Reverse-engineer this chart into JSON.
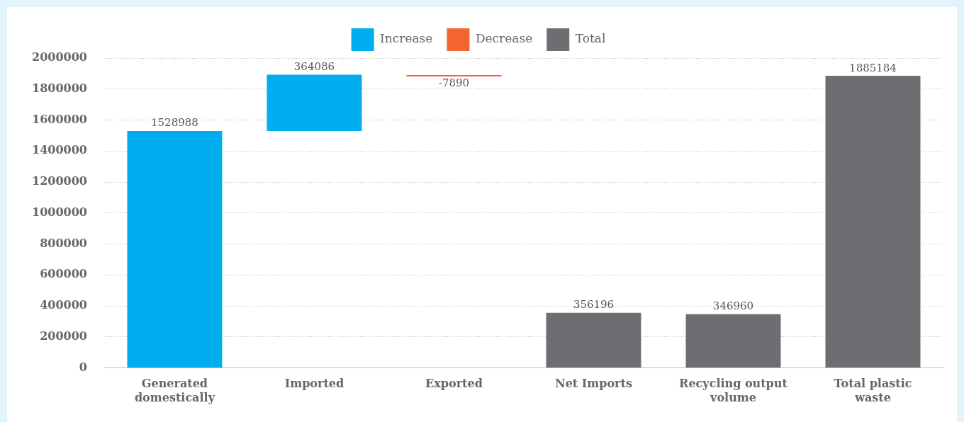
{
  "chart_data": {
    "type": "bar",
    "categories": [
      "Generated domestically",
      "Imported",
      "Exported",
      "Net Imports",
      "Recycling output volume",
      "Total plastic waste"
    ],
    "series": [
      {
        "name": "Increase",
        "color": "#00adef",
        "values": [
          1528988,
          364086,
          null,
          null,
          null,
          null
        ],
        "base": [
          0,
          1528988,
          null,
          null,
          null,
          null
        ]
      },
      {
        "name": "Decrease",
        "color": "#f26531",
        "values": [
          null,
          null,
          -7890,
          null,
          null,
          null
        ],
        "base": [
          null,
          null,
          1893074,
          null,
          null,
          null
        ]
      },
      {
        "name": "Total",
        "color": "#6d6e71",
        "values": [
          null,
          null,
          null,
          356196,
          346960,
          1885184
        ],
        "base": [
          null,
          null,
          null,
          0,
          0,
          0
        ]
      }
    ],
    "ylim": [
      0,
      2000000
    ],
    "yticks": [
      0,
      200000,
      400000,
      600000,
      800000,
      1000000,
      1200000,
      1400000,
      1600000,
      1800000,
      2000000
    ],
    "grid": "y",
    "legend": "top",
    "data_labels": true
  }
}
